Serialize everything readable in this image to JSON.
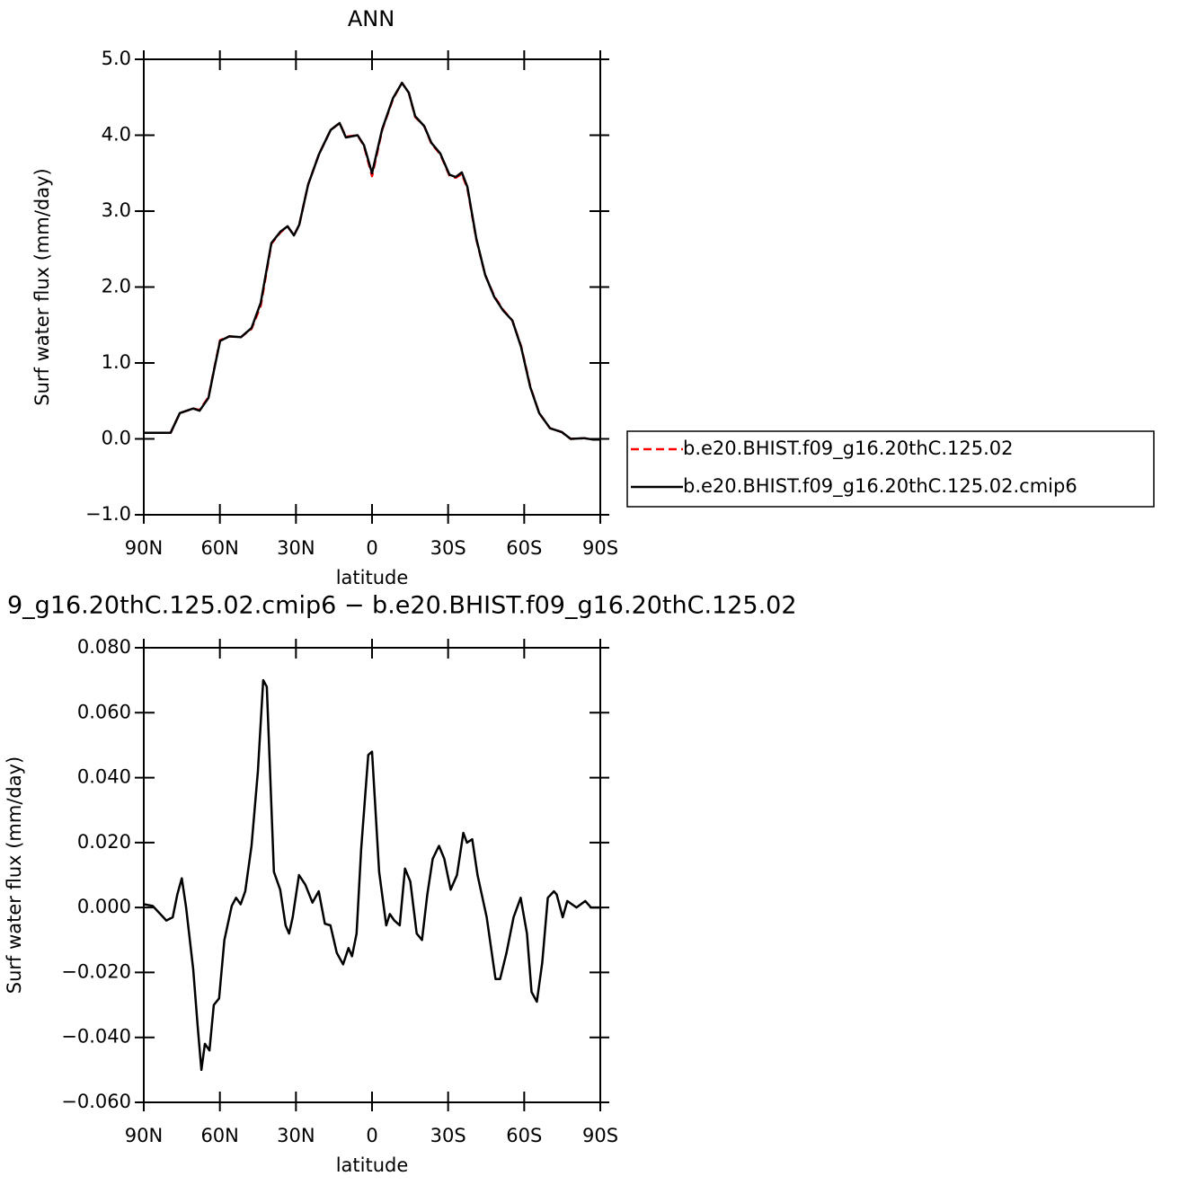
{
  "chart_data": [
    {
      "type": "line",
      "title": "ANN",
      "xlabel": "latitude",
      "ylabel": "Surf water flux (mm/day)",
      "xlim": [
        90,
        -90
      ],
      "ylim": [
        -1.0,
        5.0
      ],
      "xticks": [
        {
          "value": 90,
          "label": "90N"
        },
        {
          "value": 60,
          "label": "60N"
        },
        {
          "value": 30,
          "label": "30N"
        },
        0,
        {
          "value": -30,
          "label": "30S"
        },
        {
          "value": -60,
          "label": "60S"
        },
        {
          "value": -90,
          "label": "90S"
        }
      ],
      "yticks": [
        {
          "value": 5.0,
          "label": "5.0"
        },
        {
          "value": 4.0,
          "label": "4.0"
        },
        {
          "value": 3.0,
          "label": "3.0"
        },
        {
          "value": 2.0,
          "label": "2.0"
        },
        {
          "value": 1.0,
          "label": "1.0"
        },
        {
          "value": 0.0,
          "label": "0.0"
        },
        {
          "value": -1.0,
          "label": "−1.0"
        }
      ],
      "legend_position": "right",
      "x": [
        90,
        79.4,
        75.8,
        70.5,
        68,
        64.5,
        62.4,
        59.9,
        56.3,
        51.7,
        47.5,
        43.9,
        39.7,
        36.1,
        33.3,
        30.8,
        28.7,
        25.2,
        20.9,
        16.3,
        12.8,
        10.3,
        5.7,
        3.2,
        0,
        -4,
        -8.3,
        -11.8,
        -14.5,
        -17,
        -20.6,
        -23.4,
        -26.9,
        -30.5,
        -33,
        -35.4,
        -37.6,
        -41.1,
        -44.6,
        -48.2,
        -51.7,
        -55.3,
        -58.8,
        -62.4,
        -65.9,
        -70.2,
        -74.8,
        -78.3,
        -83.6,
        -87.2,
        -90
      ],
      "series": [
        {
          "name": "b.e20.BHIST.f09_g16.20thC.125.02",
          "color": "#ff0000",
          "dash": true,
          "values": [
            0.08,
            0.08,
            0.34,
            0.4,
            0.38,
            0.55,
            0.9,
            1.3,
            1.35,
            1.34,
            1.45,
            1.75,
            2.57,
            2.72,
            2.8,
            2.68,
            2.82,
            3.35,
            3.75,
            4.07,
            4.16,
            3.98,
            4.0,
            3.86,
            3.46,
            4.07,
            4.48,
            4.69,
            4.56,
            4.24,
            4.12,
            3.89,
            3.75,
            3.47,
            3.44,
            3.49,
            3.3,
            2.63,
            2.16,
            1.88,
            1.7,
            1.56,
            1.22,
            0.69,
            0.34,
            0.14,
            0.09,
            0.0,
            0.01,
            -0.01,
            -0.01
          ]
        },
        {
          "name": "b.e20.BHIST.f09_g16.20thC.125.02.cmip6",
          "color": "#000000",
          "dash": false,
          "values": [
            0.08,
            0.08,
            0.34,
            0.4,
            0.37,
            0.54,
            0.89,
            1.29,
            1.35,
            1.34,
            1.46,
            1.79,
            2.58,
            2.73,
            2.8,
            2.68,
            2.82,
            3.35,
            3.75,
            4.07,
            4.16,
            3.97,
            4.0,
            3.87,
            3.5,
            4.08,
            4.49,
            4.69,
            4.56,
            4.25,
            4.12,
            3.9,
            3.76,
            3.48,
            3.45,
            3.51,
            3.32,
            2.64,
            2.16,
            1.87,
            1.69,
            1.56,
            1.21,
            0.68,
            0.34,
            0.14,
            0.09,
            0.0,
            0.01,
            -0.01,
            -0.01
          ]
        }
      ]
    },
    {
      "type": "line",
      "title": "9_g16.20thC.125.02.cmip6 − b.e20.BHIST.f09_g16.20thC.125.02",
      "xlabel": "latitude",
      "ylabel": "Surf water flux (mm/day)",
      "xlim": [
        90,
        -90
      ],
      "ylim": [
        -0.06,
        0.08
      ],
      "xticks": [
        {
          "value": 90,
          "label": "90N"
        },
        {
          "value": 60,
          "label": "60N"
        },
        {
          "value": 30,
          "label": "30N"
        },
        0,
        {
          "value": -30,
          "label": "30S"
        },
        {
          "value": -60,
          "label": "60S"
        },
        {
          "value": -90,
          "label": "90S"
        }
      ],
      "yticks": [
        {
          "value": 0.08,
          "label": "0.080"
        },
        {
          "value": 0.06,
          "label": "0.060"
        },
        {
          "value": 0.04,
          "label": "0.040"
        },
        {
          "value": 0.02,
          "label": "0.020"
        },
        {
          "value": 0,
          "label": "0.000"
        },
        {
          "value": -0.02,
          "label": "−0.020"
        },
        {
          "value": -0.04,
          "label": "−0.040"
        },
        {
          "value": -0.06,
          "label": "−0.060"
        }
      ],
      "x": [
        90,
        86.5,
        81.1,
        78.6,
        76.8,
        75.0,
        73.3,
        70.5,
        68.7,
        67.3,
        65.9,
        64.1,
        62.4,
        60.3,
        58.2,
        55.3,
        53.6,
        51.8,
        50.0,
        47.5,
        45.0,
        42.9,
        41.5,
        38.7,
        36.2,
        34.1,
        32.7,
        31.3,
        28.8,
        26.3,
        23.5,
        21.0,
        18.6,
        16.4,
        13.9,
        11.4,
        9.3,
        7.9,
        6.1,
        4.3,
        1.5,
        0,
        -2.8,
        -5.6,
        -7.0,
        -8.8,
        -10.9,
        -13.0,
        -15.1,
        -17.6,
        -19.7,
        -21.8,
        -23.9,
        -26.4,
        -28.5,
        -31.0,
        -33.5,
        -36.0,
        -37.4,
        -39.5,
        -41.6,
        -45.2,
        -48.7,
        -50.5,
        -53.0,
        -55.8,
        -58.6,
        -61.1,
        -62.9,
        -65.0,
        -67.1,
        -69.3,
        -71.7,
        -72.8,
        -75.2,
        -77.0,
        -80.6,
        -84.1,
        -86.3,
        -90
      ],
      "series": [
        {
          "color": "#000000",
          "dash": false,
          "values": [
            0.001,
            0.0005,
            -0.004,
            -0.003,
            0.004,
            0.009,
            0.0,
            -0.019,
            -0.037,
            -0.05,
            -0.042,
            -0.044,
            -0.03,
            -0.028,
            -0.01,
            0.0005,
            0.003,
            0.001,
            0.005,
            0.019,
            0.042,
            0.07,
            0.068,
            0.011,
            0.0055,
            -0.0055,
            -0.008,
            -0.003,
            0.01,
            0.007,
            0.0015,
            0.005,
            -0.005,
            -0.0055,
            -0.014,
            -0.0175,
            -0.0125,
            -0.015,
            -0.008,
            0.018,
            0.047,
            0.048,
            0.011,
            -0.0055,
            -0.002,
            -0.004,
            -0.0055,
            0.012,
            0.008,
            -0.008,
            -0.01,
            0.004,
            0.015,
            0.019,
            0.015,
            0.0055,
            0.01,
            0.023,
            0.02,
            0.021,
            0.01,
            -0.003,
            -0.022,
            -0.022,
            -0.014,
            -0.003,
            0.003,
            -0.008,
            -0.026,
            -0.029,
            -0.017,
            0.003,
            0.005,
            0.004,
            -0.003,
            0.002,
            0.0,
            0.002,
            0.0,
            0.0
          ]
        }
      ]
    }
  ]
}
